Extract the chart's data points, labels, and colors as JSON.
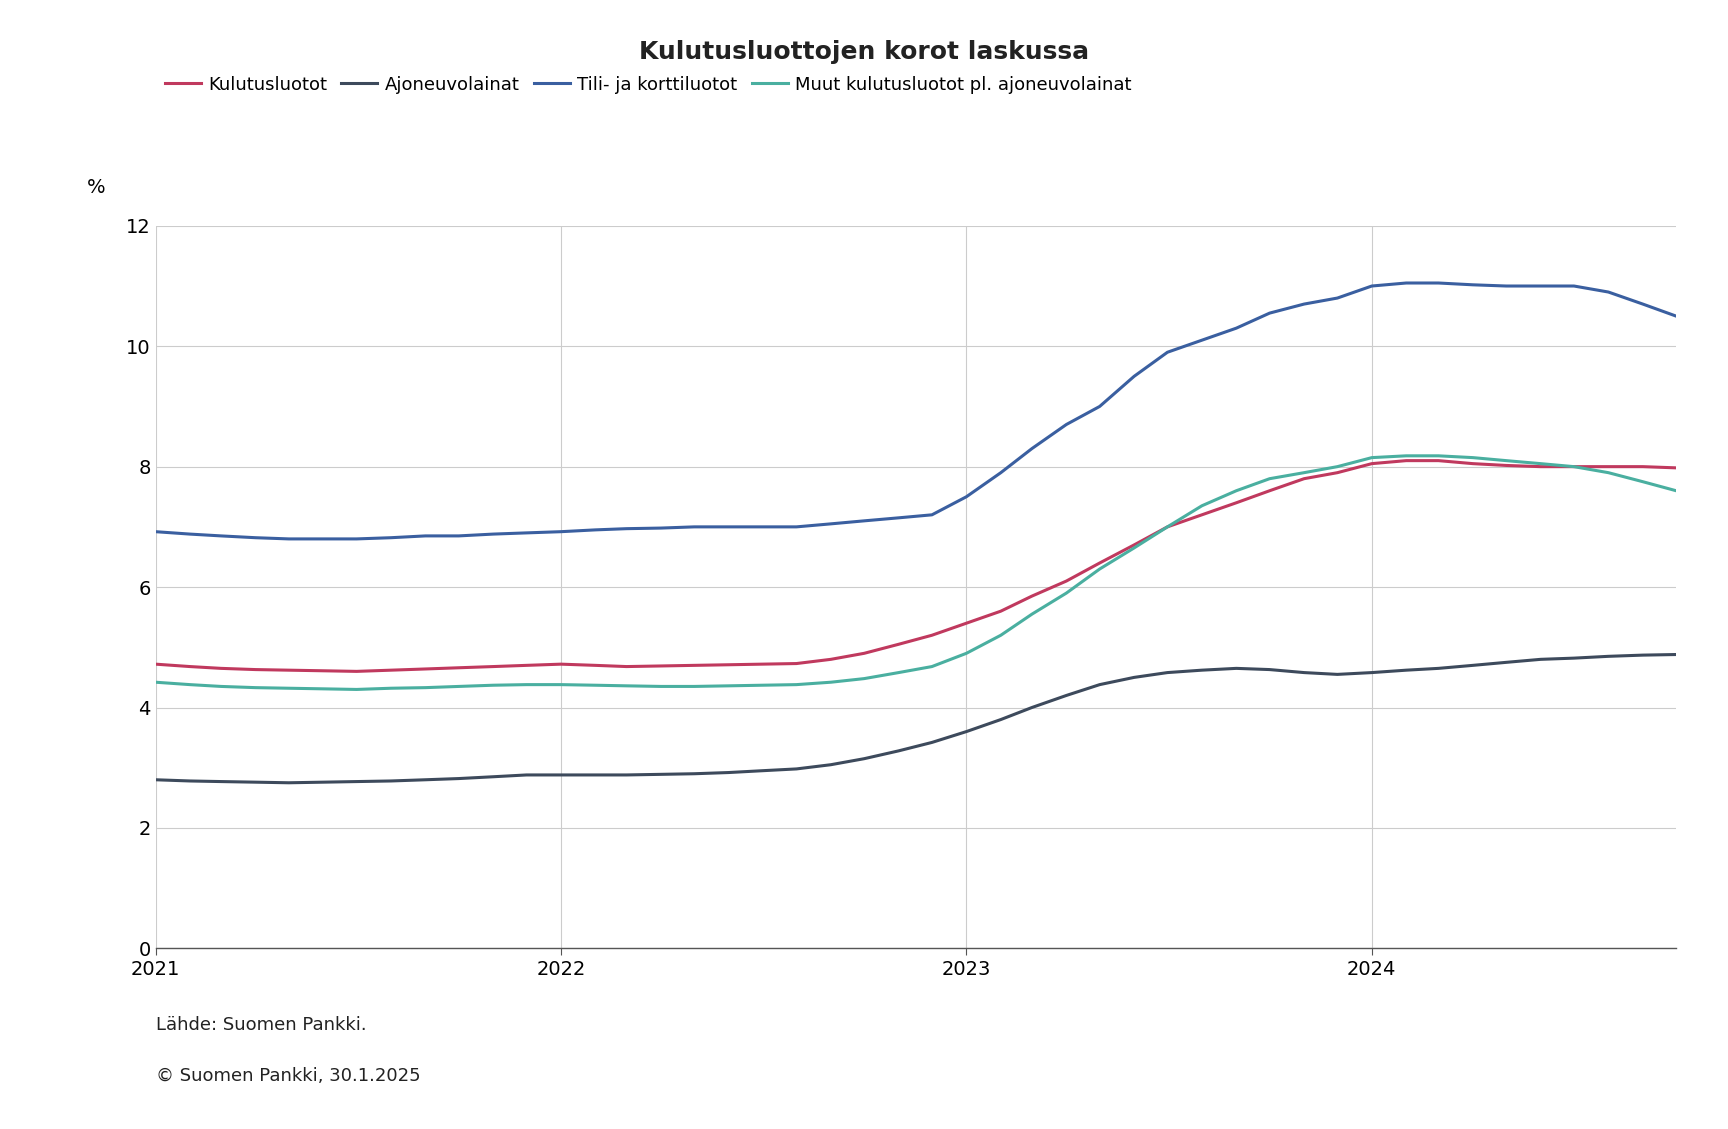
{
  "title": "Kulutusluottojen korot laskussa",
  "ylabel": "%",
  "source_line1": "Lähde: Suomen Pankki.",
  "source_line2": "© Suomen Pankki, 30.1.2025",
  "ylim": [
    0,
    12
  ],
  "yticks": [
    0,
    2,
    4,
    6,
    8,
    10,
    12
  ],
  "background_color": "#ffffff",
  "grid_color": "#cccccc",
  "series": [
    {
      "label": "Kulutusluotot",
      "color": "#c0395e",
      "linewidth": 2.2,
      "values": [
        4.72,
        4.68,
        4.65,
        4.63,
        4.62,
        4.61,
        4.6,
        4.62,
        4.64,
        4.66,
        4.68,
        4.7,
        4.72,
        4.7,
        4.68,
        4.69,
        4.7,
        4.71,
        4.72,
        4.73,
        4.8,
        4.9,
        5.05,
        5.2,
        5.4,
        5.6,
        5.85,
        6.1,
        6.4,
        6.7,
        7.0,
        7.2,
        7.4,
        7.6,
        7.8,
        7.9,
        8.05,
        8.1,
        8.1,
        8.05,
        8.02,
        8.0,
        8.0,
        8.0,
        8.0,
        7.98
      ]
    },
    {
      "label": "Ajoneuvolainat",
      "color": "#3d4a5c",
      "linewidth": 2.2,
      "values": [
        2.8,
        2.78,
        2.77,
        2.76,
        2.75,
        2.76,
        2.77,
        2.78,
        2.8,
        2.82,
        2.85,
        2.88,
        2.88,
        2.88,
        2.88,
        2.89,
        2.9,
        2.92,
        2.95,
        2.98,
        3.05,
        3.15,
        3.28,
        3.42,
        3.6,
        3.8,
        4.0,
        4.2,
        4.38,
        4.5,
        4.58,
        4.62,
        4.65,
        4.63,
        4.58,
        4.55,
        4.58,
        4.62,
        4.65,
        4.7,
        4.75,
        4.8,
        4.82,
        4.85,
        4.87,
        4.88
      ]
    },
    {
      "label": "Tili- ja korttiluotot",
      "color": "#3a5fa0",
      "linewidth": 2.2,
      "values": [
        6.92,
        6.88,
        6.85,
        6.82,
        6.8,
        6.8,
        6.8,
        6.82,
        6.85,
        6.85,
        6.88,
        6.9,
        6.92,
        6.95,
        6.97,
        6.98,
        7.0,
        7.0,
        7.0,
        7.0,
        7.05,
        7.1,
        7.15,
        7.2,
        7.5,
        7.9,
        8.3,
        8.7,
        9.0,
        9.5,
        9.9,
        10.1,
        10.3,
        10.55,
        10.7,
        10.8,
        11.0,
        11.05,
        11.05,
        11.02,
        11.0,
        11.0,
        11.0,
        10.9,
        10.7,
        10.5
      ]
    },
    {
      "label": "Muut kulutusluotot pl. ajoneuvolainat",
      "color": "#4aafa0",
      "linewidth": 2.2,
      "values": [
        4.42,
        4.38,
        4.35,
        4.33,
        4.32,
        4.31,
        4.3,
        4.32,
        4.33,
        4.35,
        4.37,
        4.38,
        4.38,
        4.37,
        4.36,
        4.35,
        4.35,
        4.36,
        4.37,
        4.38,
        4.42,
        4.48,
        4.58,
        4.68,
        4.9,
        5.2,
        5.55,
        5.9,
        6.3,
        6.65,
        7.0,
        7.35,
        7.6,
        7.8,
        7.9,
        8.0,
        8.15,
        8.18,
        8.18,
        8.15,
        8.1,
        8.05,
        8.0,
        7.9,
        7.75,
        7.6
      ]
    }
  ],
  "n_months": 46,
  "title_fontsize": 18,
  "legend_fontsize": 13,
  "tick_fontsize": 14,
  "source_fontsize": 13
}
